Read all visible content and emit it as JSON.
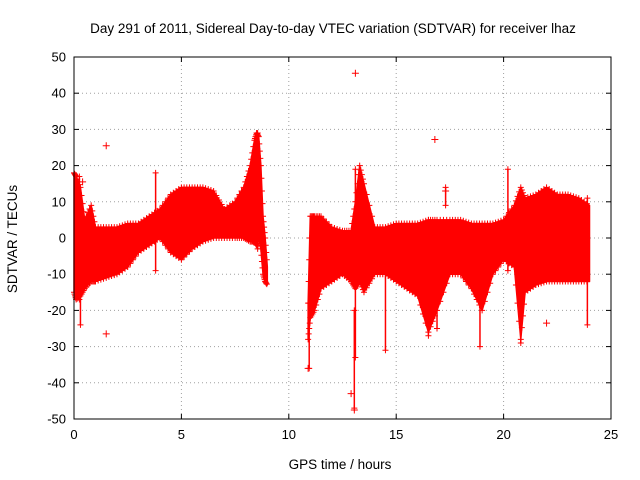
{
  "chart_data": {
    "type": "scatter",
    "title": "Day 291 of 2011, Sidereal Day-to-day VTEC variation (SDTVAR) for receiver lhaz",
    "xlabel": "GPS time / hours",
    "ylabel": "SDTVAR / TECUs",
    "xlim": [
      0,
      25
    ],
    "ylim": [
      -50,
      50
    ],
    "xticks": [
      0,
      5,
      10,
      15,
      20,
      25
    ],
    "yticks": [
      -50,
      -40,
      -30,
      -20,
      -10,
      0,
      10,
      20,
      30,
      40,
      50
    ],
    "grid": true,
    "marker": "+",
    "series_color": "#ff0000",
    "envelope": {
      "description": "dense band of points, upper/lower bounds vs hour",
      "segments": [
        {
          "x": [
            0.0,
            0.1,
            0.3,
            0.5,
            0.8,
            1.0,
            1.5,
            2.0,
            2.5,
            3.0,
            3.5,
            4.0,
            4.5,
            5.0,
            5.5,
            6.0,
            6.5,
            7.0,
            7.5,
            7.9,
            8.2,
            8.4,
            8.5,
            8.6,
            8.7,
            8.8,
            8.9,
            9.0
          ],
          "upper": [
            18,
            17,
            14,
            5,
            9,
            3,
            3,
            3,
            4,
            4,
            6,
            8,
            12,
            14,
            14,
            14,
            13,
            8,
            10,
            14,
            20,
            27,
            29,
            28,
            20,
            6,
            0,
            -8
          ],
          "lower": [
            -15,
            -17,
            -16,
            -14,
            -12,
            -12,
            -11,
            -10,
            -8,
            -4,
            -2,
            0,
            -4,
            -6,
            -3,
            -1,
            0,
            0,
            0,
            0,
            -1,
            -1,
            -2,
            0,
            -3,
            -10,
            -12,
            -13
          ]
        },
        {
          "x": [
            10.9,
            11.0,
            11.2,
            11.5,
            12.0,
            12.5,
            12.9,
            13.1,
            13.3,
            13.5,
            14.0,
            14.5,
            15.0,
            15.5,
            16.0,
            16.5,
            16.9,
            17.5,
            18.0,
            18.5,
            19.0,
            19.5,
            20.0,
            20.5,
            20.8,
            21.0,
            21.5,
            22.0,
            22.5,
            23.0,
            23.5,
            24.0
          ],
          "upper": [
            -18,
            6,
            6,
            6,
            3,
            2,
            2,
            10,
            20,
            15,
            3,
            3,
            4,
            4,
            4,
            5,
            5,
            5,
            5,
            4,
            4,
            4,
            5,
            9,
            14,
            11,
            12,
            14,
            12,
            12,
            11,
            9
          ],
          "lower": [
            -28,
            -22,
            -20,
            -14,
            -12,
            -10,
            -12,
            -14,
            -12,
            -15,
            -10,
            -10,
            -12,
            -14,
            -16,
            -26,
            -20,
            -10,
            -10,
            -14,
            -20,
            -10,
            -6,
            -8,
            -28,
            -15,
            -13,
            -12,
            -12,
            -12,
            -12,
            -12
          ]
        }
      ]
    },
    "spikes": [
      {
        "x": 0.25,
        "y1": -17,
        "y2": 17
      },
      {
        "x": 0.3,
        "y1": -24,
        "y2": -14
      },
      {
        "x": 3.8,
        "y1": -9,
        "y2": 18
      },
      {
        "x": 8.55,
        "y1": -3,
        "y2": 29
      },
      {
        "x": 10.95,
        "y1": -36,
        "y2": -18
      },
      {
        "x": 13.05,
        "y1": -47,
        "y2": -20
      },
      {
        "x": 13.1,
        "y1": -33,
        "y2": 19
      },
      {
        "x": 14.5,
        "y1": -31,
        "y2": -10
      },
      {
        "x": 16.5,
        "y1": -27,
        "y2": 5
      },
      {
        "x": 16.9,
        "y1": -25,
        "y2": -10
      },
      {
        "x": 17.3,
        "y1": 9,
        "y2": 14
      },
      {
        "x": 18.9,
        "y1": -30,
        "y2": -10
      },
      {
        "x": 20.2,
        "y1": -9,
        "y2": 19
      },
      {
        "x": 20.8,
        "y1": -29,
        "y2": -14
      },
      {
        "x": 23.9,
        "y1": -24,
        "y2": 11
      }
    ],
    "outliers": [
      {
        "x": 1.5,
        "y": 25.5
      },
      {
        "x": 1.5,
        "y": -26.5
      },
      {
        "x": 0.4,
        "y": 15.5
      },
      {
        "x": 13.1,
        "y": 45.5
      },
      {
        "x": 12.9,
        "y": -43
      },
      {
        "x": 16.8,
        "y": 27.2
      },
      {
        "x": 17.3,
        "y": 13
      },
      {
        "x": 22.0,
        "y": -23.5
      },
      {
        "x": 13.05,
        "y": -47.5
      },
      {
        "x": 10.9,
        "y": -36
      }
    ]
  }
}
